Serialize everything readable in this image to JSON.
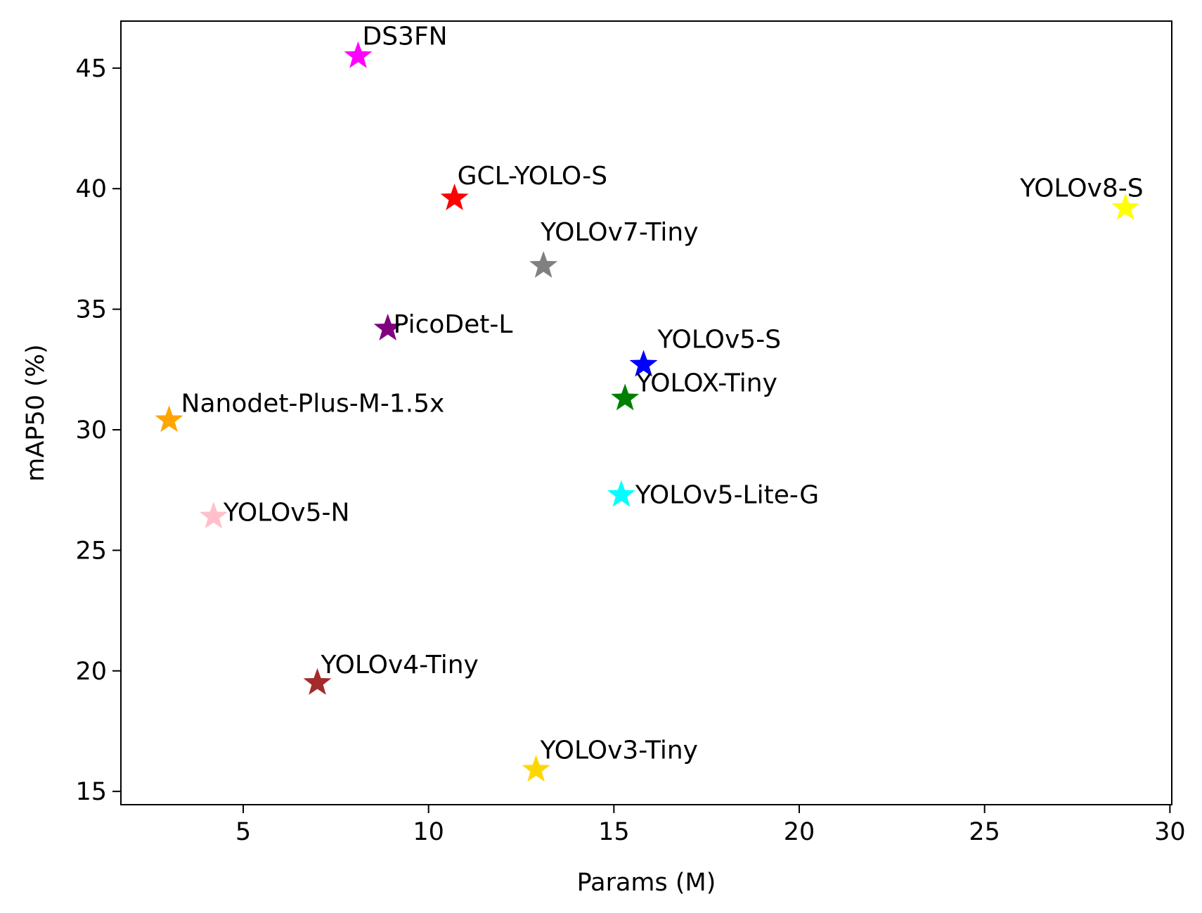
{
  "chart_data": {
    "type": "scatter",
    "title": "",
    "xlabel": "Params (M)",
    "ylabel": "mAP50 (%)",
    "xlim": [
      1.7,
      30.05
    ],
    "ylim": [
      14.45,
      46.95
    ],
    "xticks": [
      5,
      10,
      15,
      20,
      25,
      30
    ],
    "yticks": [
      15,
      20,
      25,
      30,
      35,
      40,
      45
    ],
    "grid": false,
    "legend": "none",
    "marker": "star",
    "points": [
      {
        "label": "DS3FN",
        "x": 8.1,
        "y": 45.5,
        "color": "#ff00ff"
      },
      {
        "label": "GCL-YOLO-S",
        "x": 10.7,
        "y": 39.6,
        "color": "#ff0000"
      },
      {
        "label": "YOLOv8-S",
        "x": 28.8,
        "y": 39.2,
        "color": "#ffff00"
      },
      {
        "label": "YOLOv7-Tiny",
        "x": 13.1,
        "y": 36.8,
        "color": "#808080"
      },
      {
        "label": "PicoDet-L",
        "x": 8.9,
        "y": 34.2,
        "color": "#800080"
      },
      {
        "label": "YOLOv5-S",
        "x": 15.8,
        "y": 32.7,
        "color": "#0000ff"
      },
      {
        "label": "YOLOX-Tiny",
        "x": 15.3,
        "y": 31.3,
        "color": "#008000"
      },
      {
        "label": "Nanodet-Plus-M-1.5x",
        "x": 3.0,
        "y": 30.4,
        "color": "#ffa500"
      },
      {
        "label": "YOLOv5-Lite-G",
        "x": 15.2,
        "y": 27.3,
        "color": "#00ffff"
      },
      {
        "label": "YOLOv5-N",
        "x": 4.2,
        "y": 26.4,
        "color": "#ffc0cb"
      },
      {
        "label": "YOLOv4-Tiny",
        "x": 7.0,
        "y": 19.5,
        "color": "#a52a2a"
      },
      {
        "label": "YOLOv3-Tiny",
        "x": 12.9,
        "y": 15.9,
        "color": "#ffd700"
      }
    ]
  }
}
